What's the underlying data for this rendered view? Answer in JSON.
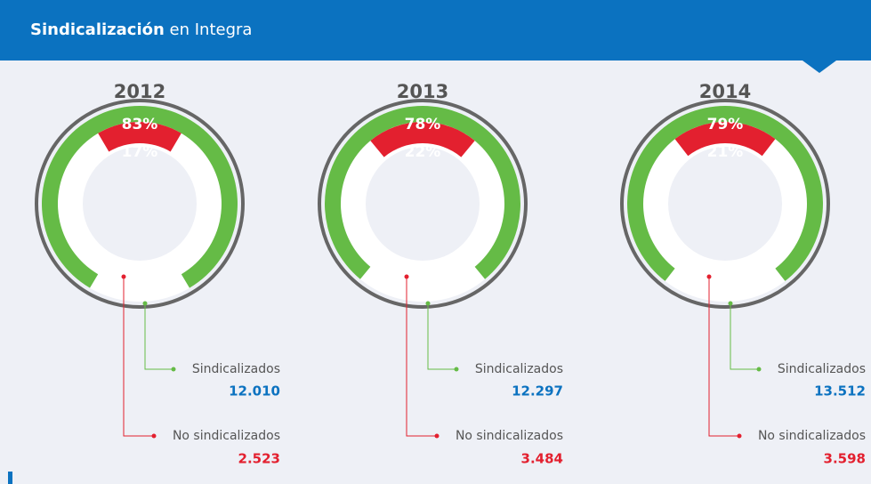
{
  "header": {
    "title_bold": "Sindicalización",
    "title_rest": "en Integra"
  },
  "chart_data": [
    {
      "type": "gauge",
      "title": "2012",
      "categories": [
        "Sindicalizados",
        "No sindicalizados"
      ],
      "colors": [
        "#65bb46",
        "#e3202f"
      ],
      "values": [
        83,
        17
      ],
      "value_labels": [
        "83%",
        "17%"
      ],
      "counts": [
        12010,
        2523
      ],
      "count_labels": [
        "12.010",
        "2.523"
      ]
    },
    {
      "type": "gauge",
      "title": "2013",
      "categories": [
        "Sindicalizados",
        "No sindicalizados"
      ],
      "colors": [
        "#65bb46",
        "#e3202f"
      ],
      "values": [
        78,
        22
      ],
      "value_labels": [
        "78%",
        "22%"
      ],
      "counts": [
        12297,
        3484
      ],
      "count_labels": [
        "12.297",
        "3.484"
      ]
    },
    {
      "type": "gauge",
      "title": "2014",
      "categories": [
        "Sindicalizados",
        "No sindicalizados"
      ],
      "colors": [
        "#65bb46",
        "#e3202f"
      ],
      "values": [
        79,
        21
      ],
      "value_labels": [
        "79%",
        "21%"
      ],
      "counts": [
        13512,
        3598
      ],
      "count_labels": [
        "13.512",
        "3.598"
      ]
    }
  ]
}
